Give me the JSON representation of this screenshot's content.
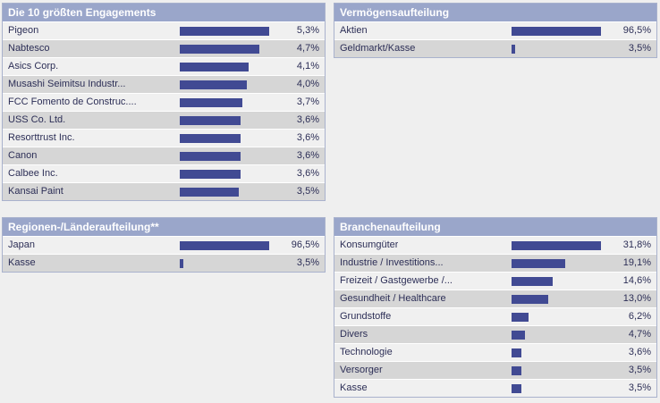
{
  "colors": {
    "page_bg": "#efefef",
    "panel_border": "#a9b2cd",
    "header_bg": "#9aa6ca",
    "header_text": "#ffffff",
    "bar": "#414a93",
    "row_light": "#f0f0f0",
    "row_dark": "#d6d6d6",
    "text": "#2c2e56"
  },
  "chart_data": [
    {
      "type": "bar",
      "title": "Die 10 größten Engagements",
      "orientation": "horizontal",
      "unit": "%",
      "scale": "bars normalized to panel max = 100px",
      "categories": [
        "Pigeon",
        "Nabtesco",
        "Asics Corp.",
        "Musashi Seimitsu Industr...",
        "FCC Fomento de Construc....",
        "USS Co. Ltd.",
        "Resorttrust Inc.",
        "Canon",
        "Calbee Inc.",
        "Kansai Paint"
      ],
      "values": [
        5.3,
        4.7,
        4.1,
        4.0,
        3.7,
        3.6,
        3.6,
        3.6,
        3.6,
        3.5
      ],
      "value_labels": [
        "5,3%",
        "4,7%",
        "4,1%",
        "4,0%",
        "3,7%",
        "3,6%",
        "3,6%",
        "3,6%",
        "3,6%",
        "3,5%"
      ]
    },
    {
      "type": "bar",
      "title": "Vermögensaufteilung",
      "orientation": "horizontal",
      "unit": "%",
      "scale": "bars normalized to panel max = 100px",
      "categories": [
        "Aktien",
        "Geldmarkt/Kasse"
      ],
      "values": [
        96.5,
        3.5
      ],
      "value_labels": [
        "96,5%",
        "3,5%"
      ]
    },
    {
      "type": "bar",
      "title": "Regionen-/Länderaufteilung**",
      "orientation": "horizontal",
      "unit": "%",
      "scale": "bars normalized to panel max = 100px",
      "categories": [
        "Japan",
        "Kasse"
      ],
      "values": [
        96.5,
        3.5
      ],
      "value_labels": [
        "96,5%",
        "3,5%"
      ]
    },
    {
      "type": "bar",
      "title": "Branchenaufteilung",
      "orientation": "horizontal",
      "unit": "%",
      "scale": "bars normalized to panel max = 100px",
      "categories": [
        "Konsumgüter",
        "Industrie / Investitions...",
        "Freizeit / Gastgewerbe /...",
        "Gesundheit / Healthcare",
        "Grundstoffe",
        "Divers",
        "Technologie",
        "Versorger",
        "Kasse"
      ],
      "values": [
        31.8,
        19.1,
        14.6,
        13.0,
        6.2,
        4.7,
        3.6,
        3.5,
        3.5
      ],
      "value_labels": [
        "31,8%",
        "19,1%",
        "14,6%",
        "13,0%",
        "6,2%",
        "4,7%",
        "3,6%",
        "3,5%",
        "3,5%"
      ]
    }
  ]
}
